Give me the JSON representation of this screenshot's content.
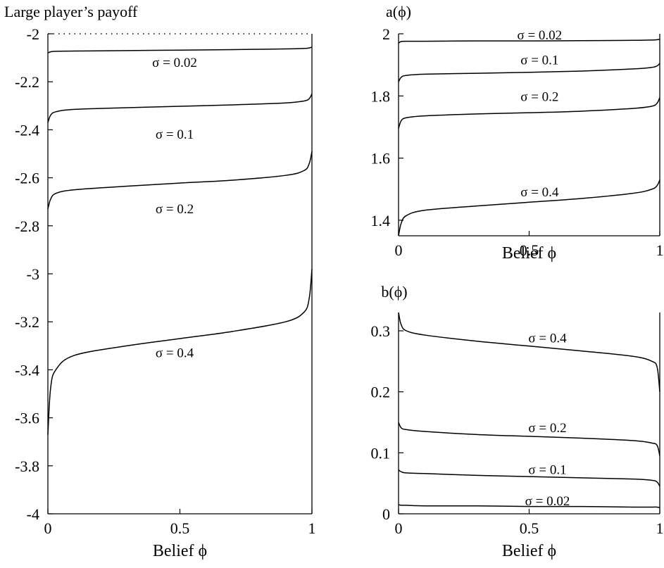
{
  "chart_data": [
    {
      "type": "line",
      "panel": "payoff",
      "title": "Large player’s payoff",
      "xlabel": "Belief ϕ",
      "xlim": [
        0,
        1
      ],
      "ylim": [
        -4,
        -2
      ],
      "xticks": [
        "0",
        "0.5",
        "1"
      ],
      "yticks": [
        "-2",
        "-2.2",
        "-2.4",
        "-2.6",
        "-2.8",
        "-3",
        "-3.2",
        "-3.4",
        "-3.6",
        "-3.8",
        "-4"
      ],
      "x": [
        0,
        0.01,
        0.03,
        0.1,
        0.3,
        0.5,
        0.7,
        0.9,
        0.97,
        0.99,
        1
      ],
      "reference_line": {
        "y": -2,
        "style": "dotted"
      },
      "series": [
        {
          "name": "σ = 0.02",
          "label_x": 0.48,
          "label_y": -2.12,
          "values": [
            -2.08,
            -2.075,
            -2.073,
            -2.072,
            -2.07,
            -2.068,
            -2.066,
            -2.063,
            -2.061,
            -2.059,
            -2.055
          ]
        },
        {
          "name": "σ = 0.1",
          "label_x": 0.48,
          "label_y": -2.42,
          "values": [
            -2.37,
            -2.34,
            -2.325,
            -2.315,
            -2.308,
            -2.302,
            -2.296,
            -2.288,
            -2.28,
            -2.27,
            -2.25
          ]
        },
        {
          "name": "σ = 0.2",
          "label_x": 0.48,
          "label_y": -2.73,
          "values": [
            -2.73,
            -2.69,
            -2.665,
            -2.65,
            -2.635,
            -2.622,
            -2.61,
            -2.59,
            -2.57,
            -2.54,
            -2.49
          ]
        },
        {
          "name": "σ = 0.4",
          "label_x": 0.48,
          "label_y": -3.33,
          "values": [
            -3.67,
            -3.48,
            -3.4,
            -3.34,
            -3.3,
            -3.27,
            -3.24,
            -3.2,
            -3.16,
            -3.1,
            -2.98
          ]
        }
      ]
    },
    {
      "type": "line",
      "panel": "a",
      "title": "a(ϕ)",
      "xlabel": "Belief ϕ",
      "xlim": [
        0,
        1
      ],
      "ylim": [
        1.35,
        2.0
      ],
      "xticks": [
        "0",
        "0.5",
        "1"
      ],
      "yticks": [
        "2",
        "1.8",
        "1.6",
        "1.4"
      ],
      "x": [
        0,
        0.01,
        0.03,
        0.1,
        0.3,
        0.5,
        0.7,
        0.9,
        0.97,
        0.99,
        1
      ],
      "series": [
        {
          "name": "σ = 0.02",
          "label_x": 0.54,
          "label_y": 1.995,
          "values": [
            1.97,
            1.975,
            1.976,
            1.976,
            1.977,
            1.977,
            1.978,
            1.979,
            1.98,
            1.981,
            1.982
          ]
        },
        {
          "name": "σ = 0.1",
          "label_x": 0.54,
          "label_y": 1.915,
          "values": [
            1.845,
            1.86,
            1.866,
            1.87,
            1.873,
            1.876,
            1.88,
            1.887,
            1.892,
            1.897,
            1.905
          ]
        },
        {
          "name": "σ = 0.2",
          "label_x": 0.54,
          "label_y": 1.797,
          "values": [
            1.695,
            1.72,
            1.73,
            1.736,
            1.742,
            1.746,
            1.751,
            1.76,
            1.767,
            1.777,
            1.795
          ]
        },
        {
          "name": "σ = 0.4",
          "label_x": 0.54,
          "label_y": 1.49,
          "values": [
            1.35,
            1.39,
            1.415,
            1.432,
            1.446,
            1.458,
            1.47,
            1.487,
            1.5,
            1.512,
            1.53
          ]
        }
      ]
    },
    {
      "type": "line",
      "panel": "b",
      "title": "b(ϕ)",
      "xlabel": "Belief ϕ",
      "xlim": [
        0,
        1
      ],
      "ylim": [
        0,
        0.33
      ],
      "xticks": [
        "0",
        "0.5",
        "1"
      ],
      "yticks": [
        "0.3",
        "0.2",
        "0.1",
        "0"
      ],
      "x": [
        0,
        0.01,
        0.03,
        0.1,
        0.3,
        0.5,
        0.7,
        0.9,
        0.97,
        0.99,
        1
      ],
      "series": [
        {
          "name": "σ = 0.4",
          "label_x": 0.57,
          "label_y": 0.288,
          "values": [
            0.33,
            0.31,
            0.3,
            0.293,
            0.283,
            0.275,
            0.267,
            0.258,
            0.25,
            0.24,
            0.2
          ]
        },
        {
          "name": "σ = 0.2",
          "label_x": 0.57,
          "label_y": 0.141,
          "values": [
            0.15,
            0.141,
            0.138,
            0.135,
            0.13,
            0.127,
            0.124,
            0.12,
            0.116,
            0.112,
            0.095
          ]
        },
        {
          "name": "σ = 0.1",
          "label_x": 0.57,
          "label_y": 0.072,
          "values": [
            0.072,
            0.069,
            0.067,
            0.066,
            0.063,
            0.061,
            0.059,
            0.057,
            0.055,
            0.052,
            0.045
          ]
        },
        {
          "name": "σ = 0.02",
          "label_x": 0.57,
          "label_y": 0.021,
          "values": [
            0.015,
            0.014,
            0.014,
            0.013,
            0.013,
            0.012,
            0.012,
            0.011,
            0.011,
            0.011,
            0.01
          ]
        }
      ]
    }
  ]
}
